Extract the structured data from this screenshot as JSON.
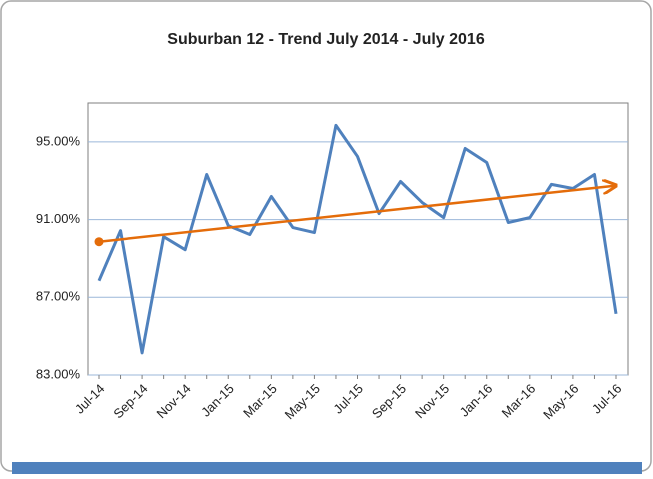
{
  "chart_data": {
    "type": "line",
    "title": "Suburban 12 - Trend July 2014 - July 2016",
    "categories": [
      "Jul-14",
      null,
      "Sep-14",
      null,
      "Nov-14",
      null,
      "Jan-15",
      null,
      "Mar-15",
      null,
      "May-15",
      null,
      "Jul-15",
      null,
      "Sep-15",
      null,
      "Nov-15",
      null,
      "Jan-16",
      null,
      "Mar-16",
      null,
      "May-16",
      null,
      "Jul-16"
    ],
    "series": [
      {
        "color": "#4f81bd",
        "values": [
          87.85,
          90.43,
          84.14,
          90.12,
          89.45,
          93.32,
          90.69,
          90.23,
          92.19,
          90.59,
          90.33,
          95.85,
          94.25,
          91.31,
          92.96,
          91.88,
          91.1,
          94.66,
          93.94,
          90.85,
          91.1,
          92.81,
          92.6,
          93.32,
          86.15
        ]
      }
    ],
    "trendline": {
      "color": "#e46c0a",
      "values": [
        89.86,
        92.75
      ]
    },
    "ylim": [
      83,
      97
    ],
    "yticks": [
      {
        "value": 83,
        "label": "83.00%"
      },
      {
        "value": 87,
        "label": "87.00%"
      },
      {
        "value": 91,
        "label": "91.00%"
      },
      {
        "value": 95,
        "label": "95.00%"
      }
    ],
    "grid": true
  }
}
